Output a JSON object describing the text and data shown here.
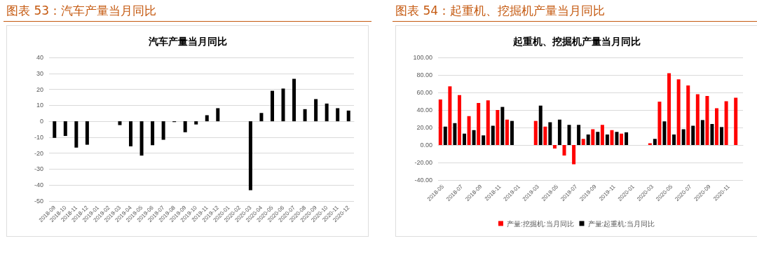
{
  "chart_data": [
    {
      "type": "bar",
      "title": "图表 53：汽车产量当月同比",
      "subtitle": "汽车产量当月同比",
      "categories": [
        "2018-09",
        "2018-10",
        "2018-11",
        "2018-12",
        "2019-01",
        "2019-02",
        "2019-03",
        "2019-04",
        "2019-05",
        "2019-06",
        "2019-07",
        "2019-08",
        "2019-09",
        "2019-10",
        "2019-11",
        "2019-12",
        "2020-01",
        "2020-02",
        "2020-03",
        "2020-04",
        "2020-05",
        "2020-06",
        "2020-07",
        "2020-08",
        "2020-09",
        "2020-10",
        "2020-11",
        "2020-12"
      ],
      "series": [
        {
          "color": "#000000",
          "values": [
            -10.4,
            -9.2,
            -16.5,
            -14.7,
            null,
            null,
            -2.4,
            -15.7,
            -21.5,
            -15,
            -11.6,
            -0.5,
            -6.9,
            -2,
            3.8,
            8.2,
            null,
            null,
            -43.2,
            5.2,
            19.1,
            20.5,
            26.6,
            7.6,
            13.9,
            11.1,
            8.2,
            6.7
          ]
        }
      ],
      "ylim": [
        -50,
        40
      ],
      "yticks": [
        -50,
        -40,
        -30,
        -20,
        -10,
        0,
        10,
        20,
        30,
        40
      ],
      "grid": "y",
      "legend": false
    },
    {
      "type": "bar",
      "title": "图表 54：起重机、挖掘机产量当月同比",
      "subtitle": "起重机、挖掘机产量当月同比",
      "categories": [
        "2018-05",
        null,
        "2018-07",
        null,
        "2018-09",
        null,
        "2018-11",
        null,
        "2019-01",
        null,
        "2019-03",
        null,
        "2019-05",
        null,
        "2019-07",
        null,
        "2019-09",
        null,
        "2019-11",
        null,
        "2020-01",
        null,
        "2020-03",
        null,
        "2020-05",
        null,
        "2020-07",
        null,
        "2020-09",
        null,
        "2020-11",
        null
      ],
      "series": [
        {
          "name": "产量:挖掘机:当月同比",
          "color": "#ff0000",
          "values": [
            52,
            67,
            57,
            33,
            48,
            51,
            40,
            29,
            null,
            null,
            27.5,
            21,
            -4,
            -12,
            -22,
            7,
            18,
            23,
            17,
            13,
            null,
            null,
            2,
            49.5,
            82,
            75,
            68,
            58,
            56,
            42,
            50,
            54
          ]
        },
        {
          "name": "产量:起重机:当月同比",
          "color": "#000000",
          "values": [
            21,
            25,
            13,
            17,
            11,
            22,
            43.5,
            27.5,
            null,
            null,
            45,
            26,
            29,
            23,
            23,
            12,
            15,
            12,
            15,
            14.5,
            null,
            null,
            7,
            27,
            12,
            18,
            22,
            28.5,
            24,
            20.5,
            null,
            null
          ]
        }
      ],
      "ylim": [
        -40,
        100
      ],
      "yticks": [
        {
          "value": -40,
          "label": "-40.00"
        },
        {
          "value": -20,
          "label": "-20.00"
        },
        {
          "value": 0,
          "label": "0.00"
        },
        {
          "value": 20,
          "label": "20.00"
        },
        {
          "value": 40,
          "label": "40.00"
        },
        {
          "value": 60,
          "label": "60.00"
        },
        {
          "value": 80,
          "label": "80.00"
        },
        {
          "value": 100,
          "label": "100.00"
        }
      ],
      "grid": "y",
      "legend": "bottom"
    }
  ]
}
